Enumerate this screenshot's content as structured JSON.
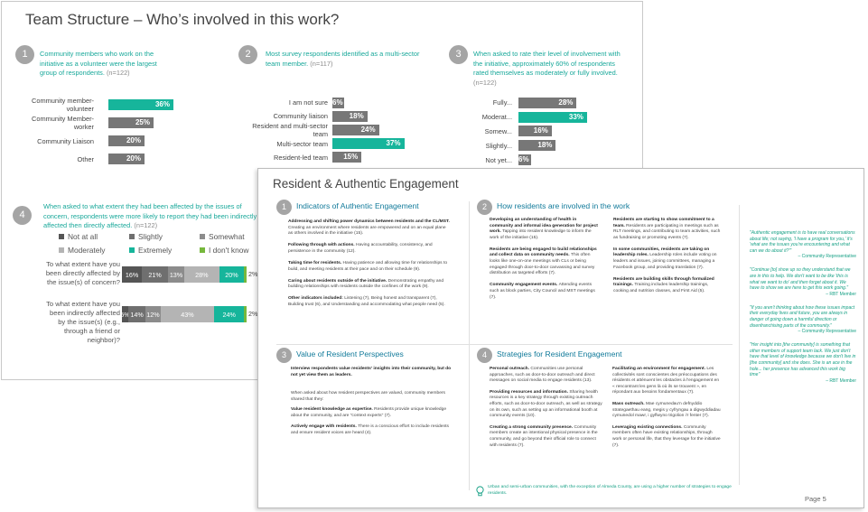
{
  "slide1": {
    "title": "Team Structure – Who’s involved in this work?",
    "finding1": {
      "num": "1",
      "text": "Community members who work on the initiative as a volunteer were the largest group of respondents.",
      "n": "(n=122)",
      "bars": [
        {
          "label": "Community member-volunteer",
          "value": 36,
          "display": "36%",
          "color": "teal"
        },
        {
          "label": "Community Member- worker",
          "value": 25,
          "display": "25%",
          "color": "grey"
        },
        {
          "label": "Community Liaison",
          "value": 20,
          "display": "20%",
          "color": "grey"
        },
        {
          "label": "Other",
          "value": 20,
          "display": "20%",
          "color": "grey"
        }
      ]
    },
    "finding2": {
      "num": "2",
      "text": "Most survey respondents identified as a multi-sector team member.",
      "n": "(n=117)",
      "bars": [
        {
          "label": "I am not sure",
          "value": 6,
          "display": "6%",
          "color": "grey"
        },
        {
          "label": "Community liaison",
          "value": 18,
          "display": "18%",
          "color": "grey"
        },
        {
          "label": "Resident and multi-sector team",
          "value": 24,
          "display": "24%",
          "color": "grey"
        },
        {
          "label": "Multi-sector team",
          "value": 37,
          "display": "37%",
          "color": "teal"
        },
        {
          "label": "Resident-led team",
          "value": 15,
          "display": "15%",
          "color": "grey"
        }
      ]
    },
    "finding3": {
      "num": "3",
      "text": "When asked to rate their level of involvement with the initiative, approximately 60% of respondents rated themselves as moderately or fully involved.",
      "n": "(n=122)",
      "bars": [
        {
          "label": "Fully...",
          "value": 28,
          "display": "28%",
          "color": "grey"
        },
        {
          "label": "Moderat...",
          "value": 33,
          "display": "33%",
          "color": "teal"
        },
        {
          "label": "Somew...",
          "value": 16,
          "display": "16%",
          "color": "grey"
        },
        {
          "label": "Slightly...",
          "value": 18,
          "display": "18%",
          "color": "grey"
        },
        {
          "label": "Not yet...",
          "value": 6,
          "display": "6%",
          "color": "grey"
        }
      ]
    },
    "finding4": {
      "num": "4",
      "text": "When asked to what extent they had been affected by the issues of concern, respondents were more likely to report they had been indirectly affected then directly affected.",
      "n": "(n=122)",
      "legend": [
        {
          "label": "Not at all",
          "color": "#555555"
        },
        {
          "label": "Slightly",
          "color": "#6f6f6f"
        },
        {
          "label": "Somewhat",
          "color": "#8c8c8c"
        },
        {
          "label": "Moderately",
          "color": "#b4b4b4"
        },
        {
          "label": "Extremely",
          "color": "#16b59b"
        },
        {
          "label": "I don't know",
          "color": "#76b83c"
        }
      ],
      "rows": [
        {
          "label": "To what extent have you been directly affected by the issue(s) of concern?",
          "values": [
            16,
            21,
            13,
            28,
            20,
            2
          ],
          "displays": [
            "16%",
            "21%",
            "13%",
            "28%",
            "20%",
            "2%"
          ]
        },
        {
          "label": "To what extent have you been indirectly affected by the issue(s) (e.g., through a friend or neighbor)?",
          "values": [
            5,
            14,
            12,
            43,
            24,
            2
          ],
          "displays": [
            "5%",
            "14%",
            "12%",
            "43%",
            "24%",
            "2%"
          ]
        }
      ]
    }
  },
  "slide2": {
    "title": "Resident & Authentic Engagement",
    "page": "Page 5",
    "sec1": {
      "num": "1",
      "title": "Indicators of Authentic Engagement",
      "items": [
        {
          "bold": "Addressing and shifting power dynamics between residents and the CL/MST.",
          "rest": "Creating an environment where residents are empowered and on an equal plane as others involved in the initiative (15)."
        },
        {
          "bold": "Following through with actions.",
          "rest": "Having accountability, consistency, and persistence in the community (12)."
        },
        {
          "bold": "Taking time for residents.",
          "rest": "Having patience and allowing time for relationships to build, and meeting residents at their pace and on their schedule (9)."
        },
        {
          "bold": "Caring about residents outside of the initiative.",
          "rest": "Demonstrating empathy and building relationships with residents outside the confines of the work (9)."
        },
        {
          "bold": "Other indicators included:",
          "rest": "Listening (7), Being honest and transparent (7), Building trust (6), and Understanding and accommodating what people need (5)."
        }
      ]
    },
    "sec2": {
      "num": "2",
      "title": "How residents are involved in the work",
      "left": [
        {
          "bold": "Developing an understanding of health in community and informal idea generation for project work.",
          "rest": "Tapping into resident knowledge to inform the work of the initiative (15)."
        },
        {
          "bold": "Residents are being engaged to build relationships and collect data on community needs.",
          "rest": "This often looks like one-on-one meetings with CLs or being engaged through door-to-door canvassing and survey distribution as targeted efforts (7)."
        },
        {
          "bold": "Community engagement events.",
          "rest": "Attending events such as block parties, City Council and MST meetings (7)."
        }
      ],
      "right": [
        {
          "bold": "Residents are starting to show commitment to a team.",
          "rest": "Residents are participating in meetings such as RLT meetings, and contributing to team activities, such as fundraising or promoting events (7)."
        },
        {
          "bold": "In some communities, residents are taking on leadership roles.",
          "rest": "Leadership roles include voting on leaders and issues, joining committees, managing a Facebook group, and providing translation (7)."
        },
        {
          "bold": "Residents are building skills through formalized trainings.",
          "rest": "Training includes leadership trainings, cooking and nutrition classes, and First Aid (5)."
        }
      ]
    },
    "sec3": {
      "num": "3",
      "title": "Value of Resident Perspectives",
      "intro": "Interview respondents value residents' insights into their community, but do not yet view them as leaders.",
      "lead": "When asked about how resident perspectives are valued, community members shared that they:",
      "items": [
        {
          "bold": "Value resident knowledge as expertise.",
          "rest": "Residents provide unique knowledge about the community, and are \"context experts\" (7)."
        },
        {
          "bold": "Actively engage with residents.",
          "rest": "There is a conscious effort to include residents and ensure resident voices are heard (4)."
        }
      ]
    },
    "sec4": {
      "num": "4",
      "title": "Strategies for Resident Engagement",
      "left": [
        {
          "bold": "Personal outreach.",
          "rest": "Communities use personal approaches, such as door-to-door outreach and direct messages on social media to engage residents (13)."
        },
        {
          "bold": "Providing resources and information.",
          "rest": "Sharing health resources is a key strategy through existing outreach efforts, such as door-to-door outreach, as well as strategy on its own, such as setting up an informational booth at community events (10)."
        },
        {
          "bold": "Creating a strong community presence.",
          "rest": "Community members create an intentional physical presence in the community, and go beyond their official role to connect with residents (7)."
        }
      ],
      "right": [
        {
          "bold": "Facilitating an environment for engagement.",
          "rest": "Les collectivités sont conscientes des préoccupations des résidents et atténuent les obstacles à l'engagement en « rencontrant les gens là où ils se trouvent », en répondant aux besoins fondamentaux (7)."
        },
        {
          "bold": "Mass outreach.",
          "rest": "Mae cymunedau'n defnyddio strategaethau eang, megis y cyfryngau a digwyddiadau cymunedol mawr, i gyflwyno trigolion i'r fenter (7)."
        },
        {
          "bold": "Leveraging existing connections.",
          "rest": "Community members often have existing relationships, through work or personal life, that they leverage for the initiative (7)."
        }
      ]
    },
    "quotes": [
      {
        "text": "\"Authentic engagement is to have real conversations about life; not saying, 'I have a program for you,' it's 'what are the issues you're encountering and what can we do about it?'\"",
        "attr": "– Community Representative"
      },
      {
        "text": "\"Continue [to] show up so they understand that we are in this to help. We don't want to be like 'this is what we want to do' and then forget about it. We have to show we are here to get this work going.\"",
        "attr": "– RBT Member"
      },
      {
        "text": "\"If you aren't thinking about how these issues impact their everyday lives and future, you are always in danger of going down a harmful direction or disenfranchising parts of the community.\"",
        "attr": "– Community Representative"
      },
      {
        "text": "\"Her insight into [the community] is something that other members of support team lack. We just don't have that level of knowledge because we don't live in [the community] and she does. She is an ace in the hole... her presence has advanced this work big time\"",
        "attr": "– RBT Member"
      }
    ],
    "footnote": "Urban and semi-urban communities, with the exception of Almeda County, are using a higher number of strategies to engage residents."
  }
}
